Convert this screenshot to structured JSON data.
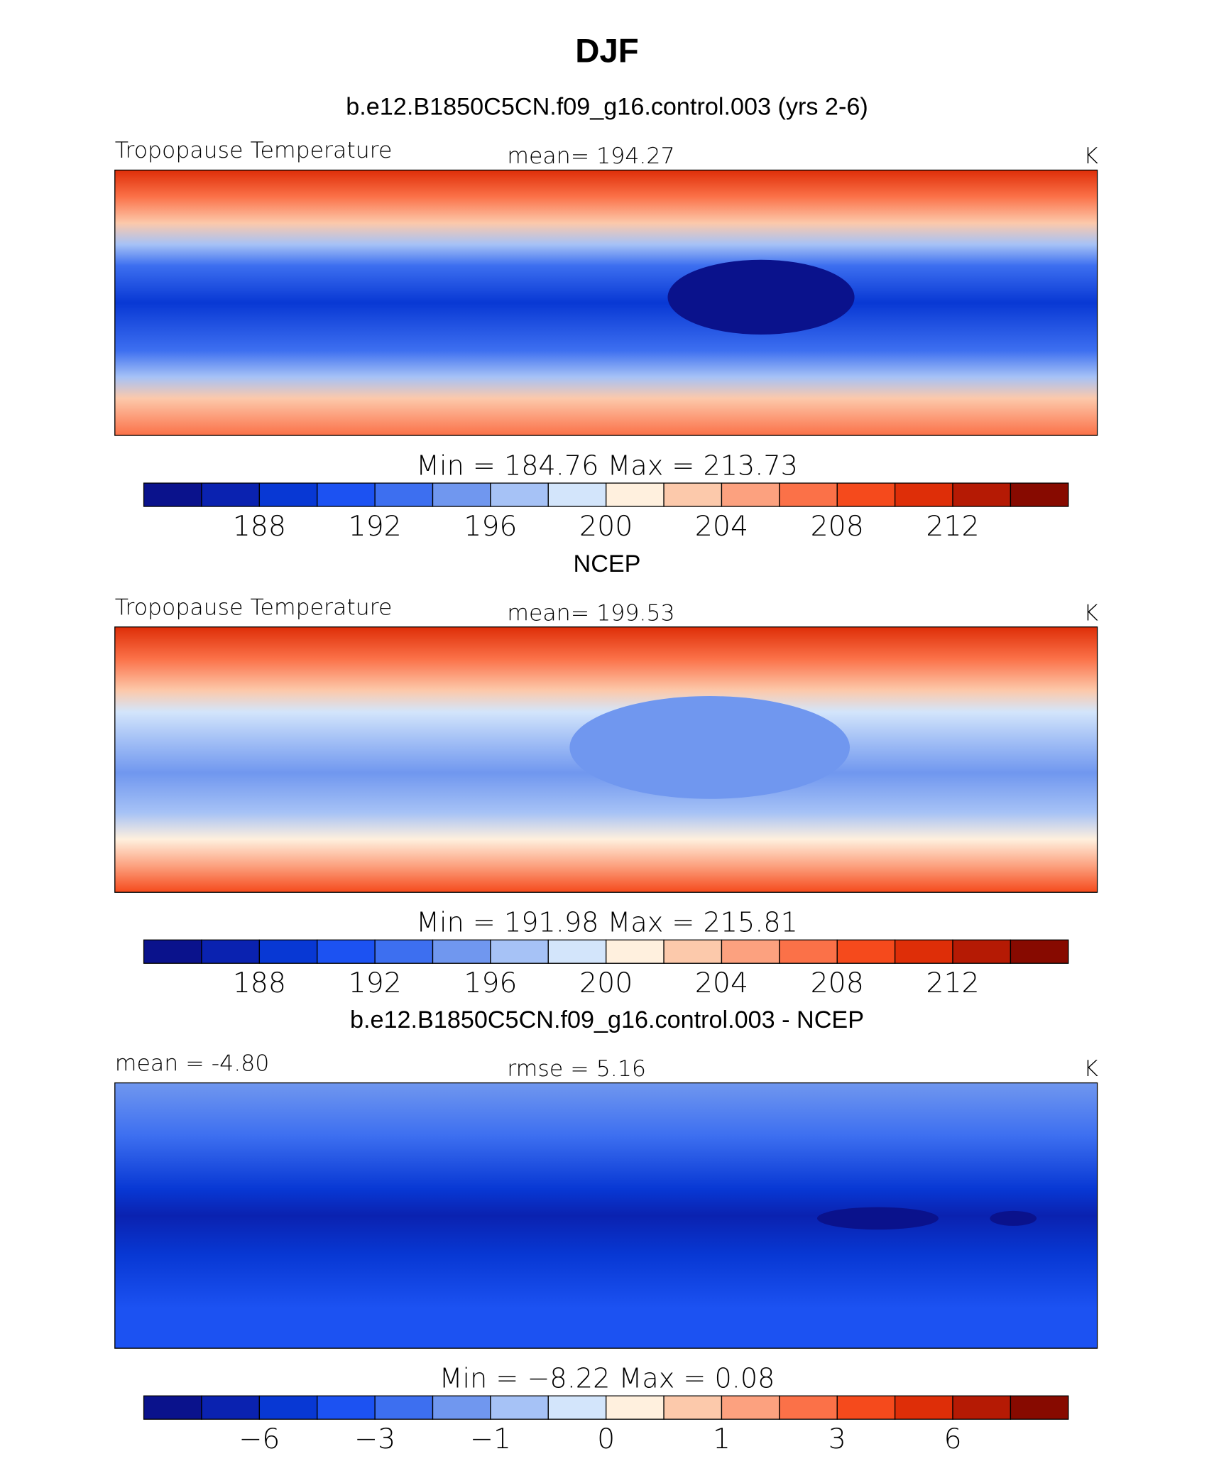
{
  "title": "DJF",
  "panels": [
    {
      "subtitle": "b.e12.B1850C5CN.f09_g16.control.003 (yrs 2-6)",
      "left": "Tropopause Temperature",
      "center": "mean= 194.27",
      "right": "K",
      "minmax": "Min = 184.76 Max = 213.73",
      "colorbar": {
        "colors": [
          "#0a128c",
          "#0a22b0",
          "#0838d4",
          "#1c52f2",
          "#3d6ff0",
          "#7097ef",
          "#a6c2f6",
          "#d3e5fb",
          "#fff0de",
          "#fcc9ab",
          "#fca17f",
          "#fb7148",
          "#f54a1c",
          "#de2e08",
          "#b51a04",
          "#870a00"
        ],
        "ticks": [
          188,
          192,
          196,
          200,
          204,
          208,
          212
        ]
      }
    },
    {
      "subtitle": "NCEP",
      "left": "Tropopause Temperature",
      "center": "mean= 199.53",
      "right": "K",
      "minmax": "Min = 191.98 Max = 215.81",
      "colorbar": {
        "colors": [
          "#0a128c",
          "#0a22b0",
          "#0838d4",
          "#1c52f2",
          "#3d6ff0",
          "#7097ef",
          "#a6c2f6",
          "#d3e5fb",
          "#fff0de",
          "#fcc9ab",
          "#fca17f",
          "#fb7148",
          "#f54a1c",
          "#de2e08",
          "#b51a04",
          "#870a00"
        ],
        "ticks": [
          188,
          192,
          196,
          200,
          204,
          208,
          212
        ]
      }
    },
    {
      "subtitle": "b.e12.B1850C5CN.f09_g16.control.003 - NCEP",
      "left": "mean =  -4.80",
      "center": "rmse =    5.16",
      "right": "K",
      "minmax": "Min =   −8.22 Max =    0.08",
      "colorbar": {
        "colors": [
          "#0a128c",
          "#0a22b0",
          "#0838d4",
          "#1c52f2",
          "#3d6ff0",
          "#7097ef",
          "#a6c2f6",
          "#d3e5fb",
          "#fff0de",
          "#fcc9ab",
          "#fca17f",
          "#fb7148",
          "#f54a1c",
          "#de2e08",
          "#b51a04",
          "#870a00"
        ],
        "ticks": [
          {
            "value": -6,
            "label": "−6"
          },
          {
            "value": -3,
            "label": "−3"
          },
          {
            "value": -1,
            "label": "−1"
          },
          0,
          1,
          3,
          6
        ]
      }
    }
  ]
}
